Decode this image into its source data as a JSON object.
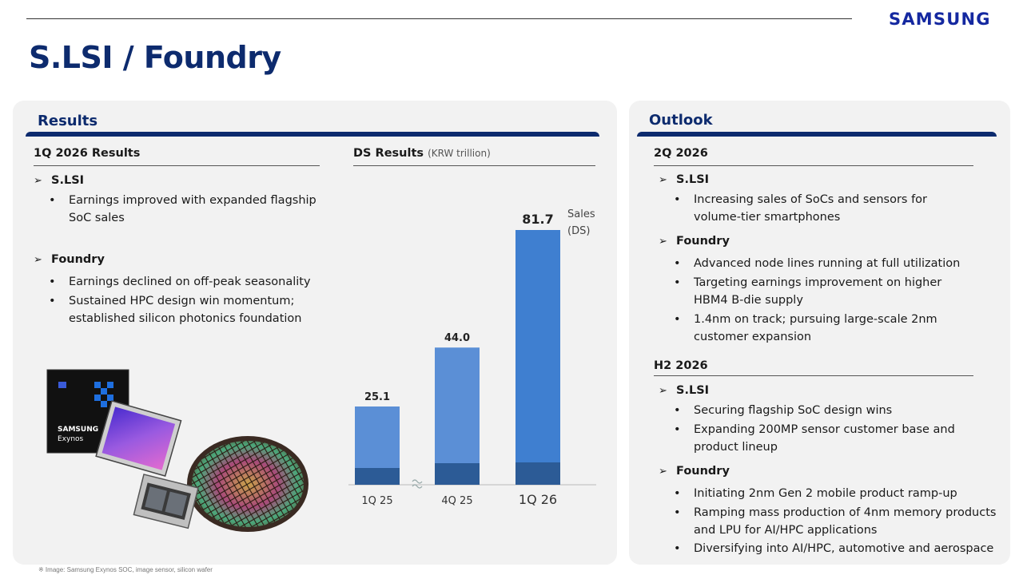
{
  "header": {
    "logo": "SAMSUNG",
    "title": "S.LSI / Foundry"
  },
  "results": {
    "title": "Results",
    "q_title": "1Q 2026 Results",
    "slsi": {
      "label": "S.LSI",
      "bullets": [
        "Earnings improved with expanded flagship SoC sales"
      ]
    },
    "foundry": {
      "label": "Foundry",
      "bullets": [
        "Earnings declined on off-peak seasonality",
        "Sustained HPC design win momentum; established silicon photonics foundation"
      ]
    },
    "chart_title": "DS Results",
    "chart_unit": "(KRW trillion)",
    "image_chip_brand": "SAMSUNG",
    "image_chip_name": "Exynos"
  },
  "chart_data": {
    "type": "bar",
    "title": "DS Results",
    "unit": "(KRW trillion)",
    "categories": [
      "1Q 25",
      "4Q 25",
      "1Q 26"
    ],
    "series": [
      {
        "name": "Sales (DS)",
        "values": [
          25.1,
          44.0,
          81.7
        ]
      }
    ],
    "value_labels": [
      "25.1",
      "44.0",
      "81.7"
    ],
    "legend_label": [
      "Sales",
      "(DS)"
    ],
    "axis_break_between": [
      "1Q 25",
      "4Q 25"
    ],
    "colors": {
      "bar": "#5b8fd6",
      "bar_base": "#2c5b96",
      "bar_last": "#3f7fd0"
    }
  },
  "outlook": {
    "title": "Outlook",
    "q2": {
      "title": "2Q 2026",
      "slsi": {
        "label": "S.LSI",
        "bullets": [
          "Increasing sales of SoCs and sensors for volume-tier smartphones"
        ]
      },
      "foundry": {
        "label": "Foundry",
        "bullets": [
          "Advanced node lines running at full utilization",
          "Targeting earnings improvement on higher HBM4 B-die supply",
          "1.4nm on track; pursuing large-scale 2nm customer expansion"
        ]
      }
    },
    "h2": {
      "title": "H2 2026",
      "slsi": {
        "label": "S.LSI",
        "bullets": [
          "Securing flagship SoC design wins",
          "Expanding 200MP sensor customer base and product lineup"
        ]
      },
      "foundry": {
        "label": "Foundry",
        "bullets": [
          "Initiating 2nm Gen 2 mobile product ramp-up",
          "Ramping mass production of 4nm memory products and LPU for AI/HPC applications",
          "Diversifying into AI/HPC, automotive and aerospace"
        ]
      }
    }
  },
  "footnote": "※ Image:  Samsung Exynos SOC, image sensor, silicon wafer"
}
